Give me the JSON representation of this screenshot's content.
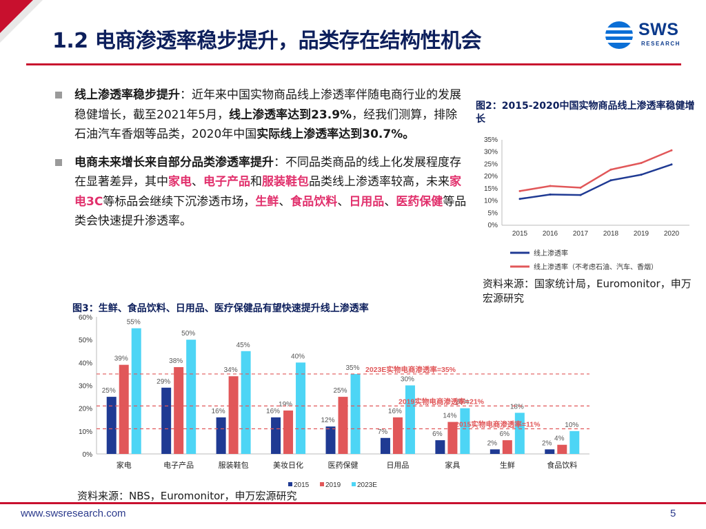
{
  "header": {
    "title": "1.2 电商渗透率稳步提升，品类存在结构性机会",
    "logo_text": "SWS",
    "logo_sub": "RESEARCH"
  },
  "bullets": [
    {
      "lead": "线上渗透率稳步提升",
      "parts": [
        {
          "t": "：近年来中国实物商品线上渗透率伴随电商行业的发展稳健增长，截至2021年5月，",
          "s": ""
        },
        {
          "t": "线上渗透率达到23.9%",
          "s": "b"
        },
        {
          "t": "，经我们测算，排除石油汽车香烟等品类，2020年中国",
          "s": ""
        },
        {
          "t": "实际线上渗透率达到30.7%。",
          "s": "b"
        }
      ]
    },
    {
      "lead": "电商未来增长来自部分品类渗透率提升",
      "parts": [
        {
          "t": "：不同品类商品的线上化发展程度存在显著差异，其中",
          "s": ""
        },
        {
          "t": "家电",
          "s": "red"
        },
        {
          "t": "、",
          "s": ""
        },
        {
          "t": "电子产品",
          "s": "red"
        },
        {
          "t": "和",
          "s": ""
        },
        {
          "t": "服装鞋包",
          "s": "red"
        },
        {
          "t": "品类线上渗透率较高，未来",
          "s": ""
        },
        {
          "t": "家电3C",
          "s": "red"
        },
        {
          "t": "等标品会继续下沉渗透市场，",
          "s": ""
        },
        {
          "t": "生鲜",
          "s": "red"
        },
        {
          "t": "、",
          "s": ""
        },
        {
          "t": "食品饮料",
          "s": "red"
        },
        {
          "t": "、",
          "s": ""
        },
        {
          "t": "日用品",
          "s": "red"
        },
        {
          "t": "、",
          "s": ""
        },
        {
          "t": "医药保健",
          "s": "red"
        },
        {
          "t": "等品类会快速提升渗透率。",
          "s": ""
        }
      ]
    }
  ],
  "fig2": {
    "title": "图2：2015-2020中国实物商品线上渗透率稳健增长",
    "source": "资料来源：国家统计局，Euromonitor，申万宏源研究"
  },
  "fig3": {
    "title": "图3：生鲜、食品饮料、日用品、医疗保健品有望快速提升线上渗透率",
    "source": "资料来源：NBS，Euromonitor，申万宏源研究"
  },
  "footer": {
    "url": "www.swsresearch.com",
    "page": "5"
  },
  "colors": {
    "navy": "#0d1f5c",
    "red": "#c8102e",
    "bar2015": "#1f3a93",
    "bar2019": "#e15759",
    "bar2023": "#4dd5f5",
    "line1": "#1f3a93",
    "line2": "#e15759"
  },
  "chart_data": [
    {
      "type": "line",
      "x": [
        "2015",
        "2016",
        "2017",
        "2018",
        "2019",
        "2020"
      ],
      "ylim": [
        0,
        35
      ],
      "yticks": [
        "0%",
        "5%",
        "10%",
        "15%",
        "20%",
        "25%",
        "30%",
        "35%"
      ],
      "series": [
        {
          "name": "线上渗透率",
          "values": [
            10.8,
            12.6,
            12.4,
            18.4,
            20.7,
            24.9
          ]
        },
        {
          "name": "线上渗透率（不考虑石油、汽车、香烟）",
          "values": [
            14.0,
            16.1,
            15.4,
            22.8,
            25.5,
            30.7
          ]
        }
      ],
      "legend": "bottom"
    },
    {
      "type": "bar",
      "categories": [
        "家电",
        "电子产品",
        "服装鞋包",
        "美妆日化",
        "医药保健",
        "日用品",
        "家具",
        "生鲜",
        "食品饮料"
      ],
      "ylim": [
        0,
        60
      ],
      "yticks": [
        "0%",
        "10%",
        "20%",
        "30%",
        "40%",
        "50%",
        "60%"
      ],
      "series": [
        {
          "name": "2015",
          "values": [
            25,
            29,
            16,
            16,
            12,
            7,
            6,
            2,
            2
          ]
        },
        {
          "name": "2019",
          "values": [
            39,
            38,
            34,
            19,
            25,
            16,
            14,
            6,
            4
          ]
        },
        {
          "name": "2023E",
          "values": [
            55,
            50,
            45,
            40,
            35,
            30,
            20,
            18,
            10
          ]
        }
      ],
      "reference_lines": [
        {
          "value": 35,
          "label": "2023E实物电商渗透率=35%"
        },
        {
          "value": 21,
          "label": "2019实物电商渗透率=21%"
        },
        {
          "value": 11,
          "label": "2015实物电商渗透率=11%"
        }
      ],
      "legend": "bottom"
    }
  ]
}
